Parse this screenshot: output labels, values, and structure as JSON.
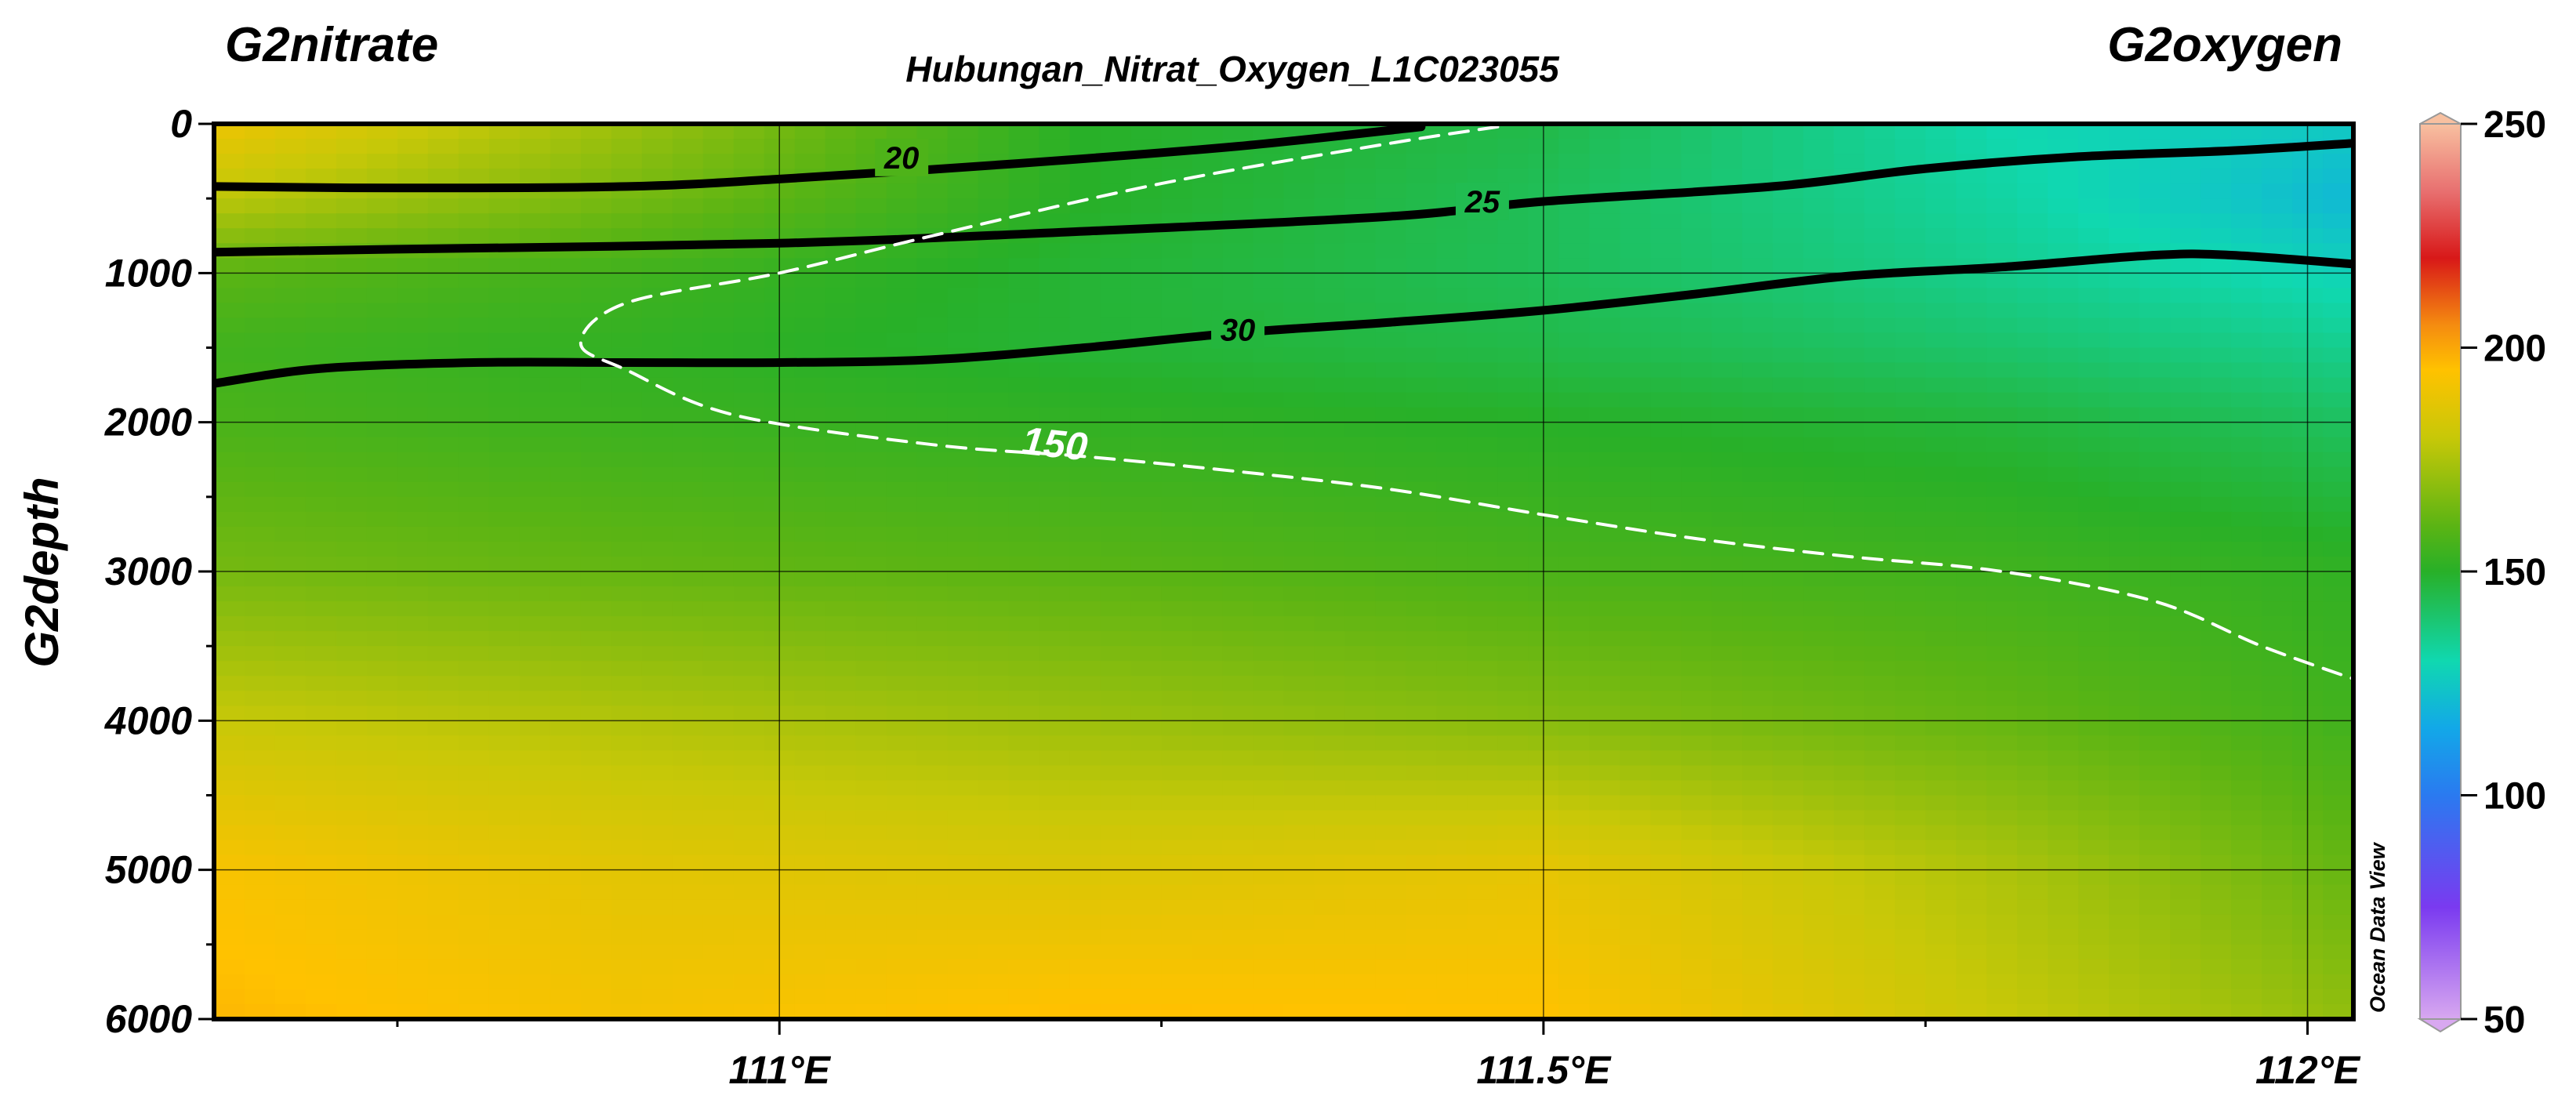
{
  "figure": {
    "left_variable": "G2nitrate",
    "right_variable": "G2oxygen",
    "title": "Hubungan_Nitrat_Oxygen_L1C023055",
    "watermark": "Ocean Data View"
  },
  "chart_data": {
    "type": "heatmap",
    "title": "Hubungan_Nitrat_Oxygen_L1C023055",
    "xlabel": "",
    "ylabel": "G2depth",
    "xlim": [
      110.63,
      112.03
    ],
    "ylim": [
      6000,
      0
    ],
    "y_inverted": true,
    "grid": true,
    "x_ticks": [
      {
        "value": 111.0,
        "label": "111°E"
      },
      {
        "value": 111.5,
        "label": "111.5°E"
      },
      {
        "value": 112.0,
        "label": "112°E"
      }
    ],
    "y_ticks": [
      {
        "value": 0,
        "label": "0"
      },
      {
        "value": 1000,
        "label": "1000"
      },
      {
        "value": 2000,
        "label": "2000"
      },
      {
        "value": 3000,
        "label": "3000"
      },
      {
        "value": 4000,
        "label": "4000"
      },
      {
        "value": 5000,
        "label": "5000"
      },
      {
        "value": 6000,
        "label": "6000"
      }
    ],
    "colorbar": {
      "variable": "G2oxygen",
      "range": [
        50,
        250
      ],
      "ticks": [
        {
          "value": 250,
          "label": "250"
        },
        {
          "value": 200,
          "label": "200"
        },
        {
          "value": 150,
          "label": "150"
        },
        {
          "value": 100,
          "label": "100"
        },
        {
          "value": 50,
          "label": "50"
        }
      ],
      "stops": [
        {
          "value": 50,
          "color": "#d8a8f0"
        },
        {
          "value": 75,
          "color": "#7a3af0"
        },
        {
          "value": 100,
          "color": "#2a7af0"
        },
        {
          "value": 115,
          "color": "#12a8e8"
        },
        {
          "value": 130,
          "color": "#10d8b0"
        },
        {
          "value": 150,
          "color": "#28b028"
        },
        {
          "value": 160,
          "color": "#5ab414"
        },
        {
          "value": 180,
          "color": "#c8c808"
        },
        {
          "value": 195,
          "color": "#ffc200"
        },
        {
          "value": 205,
          "color": "#f58c10"
        },
        {
          "value": 220,
          "color": "#d81818"
        },
        {
          "value": 235,
          "color": "#e87070"
        },
        {
          "value": 250,
          "color": "#f8c0a0"
        }
      ]
    },
    "oxygen_field": {
      "variable": "G2oxygen",
      "x": [
        110.63,
        110.9,
        111.2,
        111.5,
        111.8,
        112.03
      ],
      "y": [
        0,
        500,
        1000,
        1500,
        2000,
        3000,
        4000,
        5000,
        6000
      ],
      "values": [
        [
          190,
          172,
          150,
          145,
          130,
          125
        ],
        [
          178,
          165,
          150,
          143,
          132,
          120
        ],
        [
          160,
          155,
          148,
          143,
          135,
          128
        ],
        [
          155,
          152,
          148,
          145,
          140,
          135
        ],
        [
          157,
          154,
          152,
          150,
          147,
          142
        ],
        [
          165,
          162,
          160,
          157,
          155,
          152
        ],
        [
          180,
          176,
          172,
          168,
          162,
          155
        ],
        [
          193,
          187,
          185,
          188,
          175,
          162
        ],
        [
          197,
          192,
          196,
          195,
          180,
          170
        ]
      ]
    },
    "series": [
      {
        "name": "20",
        "variable": "G2nitrate",
        "style": "solid-black",
        "points": [
          [
            110.63,
            420
          ],
          [
            110.75,
            430
          ],
          [
            110.9,
            420
          ],
          [
            111.0,
            370
          ],
          [
            111.15,
            270
          ],
          [
            111.3,
            150
          ],
          [
            111.42,
            20
          ]
        ]
      },
      {
        "name": "25",
        "variable": "G2nitrate",
        "style": "solid-black",
        "points": [
          [
            110.63,
            860
          ],
          [
            110.75,
            840
          ],
          [
            111.0,
            800
          ],
          [
            111.2,
            720
          ],
          [
            111.4,
            620
          ],
          [
            111.5,
            520
          ],
          [
            111.65,
            420
          ],
          [
            111.75,
            300
          ],
          [
            111.85,
            220
          ],
          [
            111.95,
            180
          ],
          [
            112.03,
            130
          ]
        ]
      },
      {
        "name": "30",
        "variable": "G2nitrate",
        "style": "solid-black",
        "points": [
          [
            110.63,
            1740
          ],
          [
            110.7,
            1640
          ],
          [
            110.8,
            1600
          ],
          [
            110.9,
            1600
          ],
          [
            111.0,
            1600
          ],
          [
            111.1,
            1580
          ],
          [
            111.2,
            1500
          ],
          [
            111.3,
            1400
          ],
          [
            111.4,
            1330
          ],
          [
            111.5,
            1250
          ],
          [
            111.6,
            1140
          ],
          [
            111.7,
            1020
          ],
          [
            111.8,
            960
          ],
          [
            111.9,
            880
          ],
          [
            111.95,
            880
          ],
          [
            112.03,
            940
          ]
        ]
      },
      {
        "name": "150",
        "variable": "G2oxygen",
        "style": "dashed-white",
        "points": [
          [
            111.47,
            20
          ],
          [
            111.4,
            130
          ],
          [
            111.25,
            400
          ],
          [
            111.1,
            750
          ],
          [
            111.0,
            1000
          ],
          [
            110.9,
            1200
          ],
          [
            110.87,
            1470
          ],
          [
            110.9,
            1650
          ],
          [
            110.97,
            1950
          ],
          [
            111.1,
            2150
          ],
          [
            111.2,
            2230
          ],
          [
            111.3,
            2330
          ],
          [
            111.4,
            2450
          ],
          [
            111.5,
            2620
          ],
          [
            111.6,
            2780
          ],
          [
            111.7,
            2900
          ],
          [
            111.8,
            3000
          ],
          [
            111.9,
            3200
          ],
          [
            111.97,
            3500
          ],
          [
            112.03,
            3720
          ]
        ]
      }
    ]
  }
}
